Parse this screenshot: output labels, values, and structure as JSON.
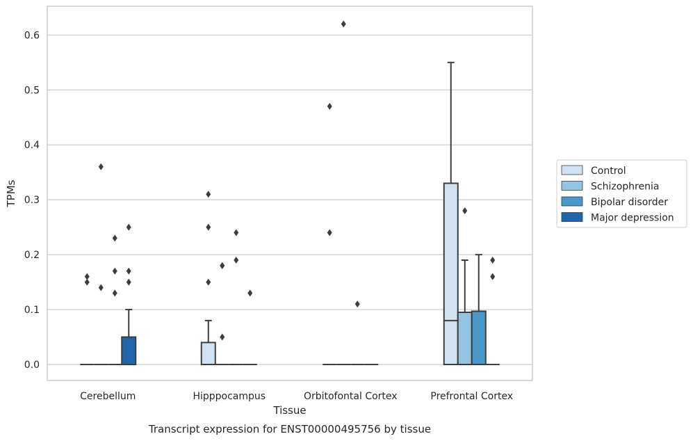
{
  "chart_data": {
    "type": "box",
    "title": "Transcript expression for ENST00000495756 by tissue",
    "xlabel": "Tissue",
    "ylabel": "TPMs",
    "ylim": [
      -0.03,
      0.65
    ],
    "yticks": [
      "0.0",
      "0.1",
      "0.2",
      "0.3",
      "0.4",
      "0.5",
      "0.6"
    ],
    "grid": "horizontal",
    "legend_position": "right",
    "categories": [
      "Cerebellum",
      "Hipppocampus",
      "Orbitofontal Cortex",
      "Prefrontal Cortex"
    ],
    "series": [
      {
        "name": "Control",
        "color": "#d0e1f2",
        "boxes": [
          {
            "q1": 0,
            "median": 0,
            "q3": 0,
            "whisker_low": 0,
            "whisker_high": 0,
            "outliers": [
              0.16,
              0.15
            ]
          },
          {
            "q1": 0,
            "median": 0,
            "q3": 0.04,
            "whisker_low": 0,
            "whisker_high": 0.08,
            "outliers": [
              0.31,
              0.25,
              0.15
            ]
          },
          {
            "q1": 0,
            "median": 0,
            "q3": 0,
            "whisker_low": 0,
            "whisker_high": 0,
            "outliers": [
              0.47,
              0.24
            ]
          },
          {
            "q1": 0,
            "median": 0.08,
            "q3": 0.33,
            "whisker_low": 0,
            "whisker_high": 0.55,
            "outliers": []
          }
        ]
      },
      {
        "name": "Schizophrenia",
        "color": "#94c4df",
        "boxes": [
          {
            "q1": 0,
            "median": 0,
            "q3": 0,
            "whisker_low": 0,
            "whisker_high": 0,
            "outliers": [
              0.36,
              0.14
            ]
          },
          {
            "q1": 0,
            "median": 0,
            "q3": 0,
            "whisker_low": 0,
            "whisker_high": 0,
            "outliers": [
              0.18,
              0.18,
              0.05
            ]
          },
          {
            "q1": 0,
            "median": 0,
            "q3": 0,
            "whisker_low": 0,
            "whisker_high": 0,
            "outliers": [
              0.62
            ]
          },
          {
            "q1": 0,
            "median": 0,
            "q3": 0.095,
            "whisker_low": 0,
            "whisker_high": 0.19,
            "outliers": [
              0.28
            ]
          }
        ]
      },
      {
        "name": "Bipolar disorder",
        "color": "#4a98c9",
        "boxes": [
          {
            "q1": 0,
            "median": 0,
            "q3": 0,
            "whisker_low": 0,
            "whisker_high": 0,
            "outliers": [
              0.23,
              0.17,
              0.13
            ]
          },
          {
            "q1": 0,
            "median": 0,
            "q3": 0,
            "whisker_low": 0,
            "whisker_high": 0,
            "outliers": [
              0.24,
              0.19
            ]
          },
          {
            "q1": 0,
            "median": 0,
            "q3": 0,
            "whisker_low": 0,
            "whisker_high": 0,
            "outliers": [
              0.11
            ]
          },
          {
            "q1": 0,
            "median": 0,
            "q3": 0.097,
            "whisker_low": 0,
            "whisker_high": 0.2,
            "outliers": []
          }
        ]
      },
      {
        "name": "Major depression",
        "color": "#2166ac",
        "boxes": [
          {
            "q1": 0,
            "median": 0,
            "q3": 0.05,
            "whisker_low": 0,
            "whisker_high": 0.1,
            "outliers": [
              0.25,
              0.17,
              0.15
            ]
          },
          {
            "q1": 0,
            "median": 0,
            "q3": 0,
            "whisker_low": 0,
            "whisker_high": 0,
            "outliers": [
              0.13
            ]
          },
          {
            "q1": 0,
            "median": 0,
            "q3": 0,
            "whisker_low": 0,
            "whisker_high": 0,
            "outliers": []
          },
          {
            "q1": 0,
            "median": 0,
            "q3": 0,
            "whisker_low": 0,
            "whisker_high": 0,
            "outliers": [
              0.19,
              0.16
            ]
          }
        ]
      }
    ]
  }
}
